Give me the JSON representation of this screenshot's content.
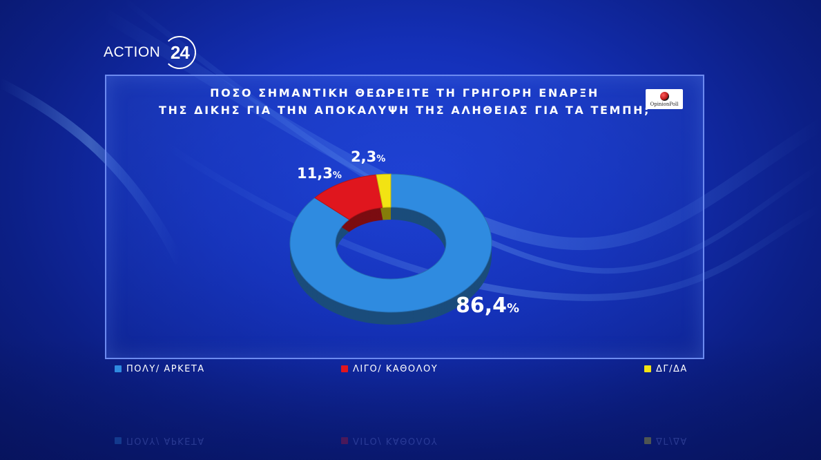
{
  "channel": {
    "logo_word": "ACTION",
    "logo_number": "24"
  },
  "poll_badge": {
    "text": "OpinionPoll"
  },
  "chart_data": {
    "type": "pie",
    "title": [
      "ΠΟΣΟ ΣΗΜΑΝΤΙΚΗ ΘΕΩΡΕΙΤΕ ΤΗ ΓΡΗΓΟΡΗ ΕΝΑΡΞΗ",
      "ΤΗΣ ΔΙΚΗΣ ΓΙΑ ΤΗΝ ΑΠΟΚΑΛΥΨΗ ΤΗΣ ΑΛΗΘΕΙΑΣ ΓΙΑ ΤΑ ΤΕΜΠΗ;"
    ],
    "unit": "%",
    "donut": true,
    "slices": [
      {
        "label": "ΠΟΛΥ/ ΑΡΚΕΤΑ",
        "value": 86.4,
        "display": "86,4",
        "color": "#2f8be0"
      },
      {
        "label": "ΛΙΓΟ/ ΚΑΘΟΛΟΥ",
        "value": 11.3,
        "display": "11,3",
        "color": "#e0161e"
      },
      {
        "label": "ΔΓ/ΔΑ",
        "value": 2.3,
        "display": "2,3",
        "color": "#f2e313"
      }
    ]
  }
}
